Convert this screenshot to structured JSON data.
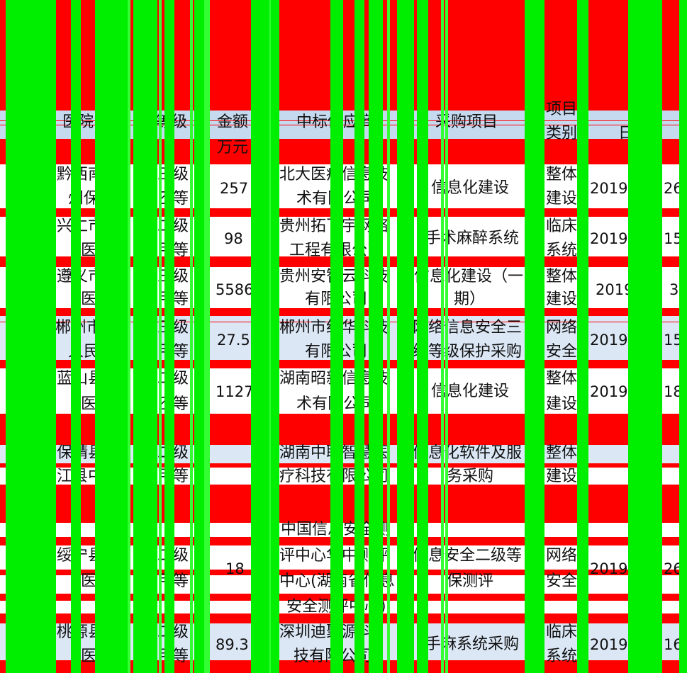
{
  "headers": {
    "hospital": "医院",
    "level": "等级",
    "amount": "金额",
    "amount_unit": "万元",
    "supplier": "中标供应商",
    "project": "采购项目",
    "category_a": "项目",
    "category_b": "类别",
    "date": "日期"
  },
  "rows": [
    {
      "hospital_1": "黔西南",
      "hospital_2": "州保",
      "level_1": "三级",
      "level_2": "乙等",
      "amount": "257",
      "supplier_1": "北大医疗信息技",
      "supplier_2": "术有限公司",
      "project_1": "信息化建设",
      "category_1": "整体",
      "category_2": "建设",
      "date": "2019",
      "day": "26"
    },
    {
      "hospital_1": "兴仁市",
      "hospital_2": "医院",
      "level_1": "二级",
      "level_2": "甲等",
      "amount": "98",
      "supplier_1": "贵州拓飞宇网络",
      "supplier_2": "工程有限公司",
      "project_1": "手术麻醉系统",
      "category_1": "临床",
      "category_2": "系统",
      "date": "2019",
      "day": "15"
    },
    {
      "hospital_1": "遵义市",
      "hospital_2": "医院",
      "level_1": "三级",
      "level_2": "甲等",
      "amount": "5586",
      "supplier_1": "贵州安智云科技",
      "supplier_2": "有限公司",
      "project_1": "信息化建设（一",
      "project_2": "期）",
      "category_1": "整体",
      "category_2": "建设",
      "date": "2019",
      "day": "3"
    },
    {
      "hospital_1": "郴州市",
      "hospital_2": "人民",
      "level_1": "三级",
      "level_2": "甲等",
      "amount": "27.5",
      "supplier_1": "郴州市红华科技",
      "supplier_2": "有限公司",
      "project_1": "网络信息安全三",
      "project_2": "级等级保护采购",
      "category_1": "网络",
      "category_2": "安全",
      "date": "2019",
      "day": "15"
    },
    {
      "hospital_1": "蓝山县",
      "hospital_2": "医院",
      "level_1": "二级",
      "level_2": "乙等",
      "amount": "1127",
      "supplier_1": "湖南昭新信息技",
      "supplier_2": "术有限公司",
      "project_1": "信息化建设",
      "category_1": "整体",
      "category_2": "建设",
      "date": "2019",
      "day": "18"
    },
    {
      "hospital_1": "保靖县",
      "hospital_2": "江县中",
      "level_1": "二级",
      "level_2": "甲等",
      "amount": "",
      "supplier_1": "湖南中联智慧医",
      "supplier_2": "疗科技有限公司",
      "project_1": "信息化软件及服",
      "project_2": "务采购",
      "category_1": "整体",
      "category_2": "建设",
      "date": "",
      "day": ""
    },
    {
      "hospital_1": "绥宁县",
      "hospital_2": "医院",
      "level_1": "二级",
      "level_2": "甲等",
      "amount": "18",
      "supplier_0": "中国信息安全测",
      "supplier_1": "评中心华中测评",
      "supplier_2": "中心(湖南省信息",
      "supplier_3": "安全测评中心)",
      "project_1": "信息安全二级等",
      "project_2": "保测评",
      "category_1": "网络",
      "category_2": "安全",
      "date": "2019",
      "day": "26"
    },
    {
      "hospital_1": "桃源县",
      "hospital_2": "医院",
      "level_1": "二级",
      "level_2": "甲等",
      "amount": "89.3",
      "supplier_1": "深圳迪聚源科",
      "supplier_2": "技有限公司",
      "project_1": "手麻系统采购",
      "category_1": "临床",
      "category_2": "系统",
      "date": "2019",
      "day": "16"
    }
  ]
}
